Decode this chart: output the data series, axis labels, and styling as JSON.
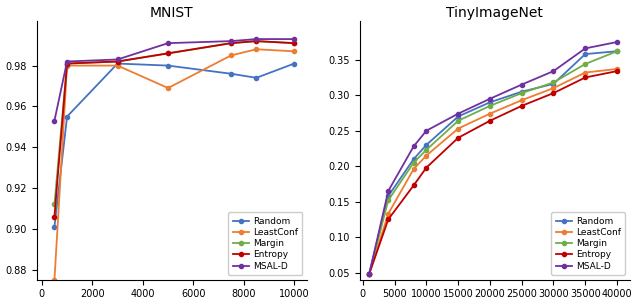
{
  "mnist": {
    "title": "MNIST",
    "x": [
      500,
      1000,
      3000,
      5000,
      7500,
      8500,
      10000
    ],
    "Random": [
      0.901,
      0.955,
      0.981,
      0.98,
      0.976,
      0.974,
      0.981
    ],
    "LeastConf": [
      0.875,
      0.98,
      0.98,
      0.969,
      0.985,
      0.988,
      0.987
    ],
    "Margin": [
      0.912,
      0.981,
      0.982,
      0.986,
      0.991,
      0.992,
      0.991
    ],
    "Entropy": [
      0.906,
      0.981,
      0.982,
      0.986,
      0.991,
      0.992,
      0.991
    ],
    "MSAL-D": [
      0.953,
      0.982,
      0.983,
      0.991,
      0.992,
      0.993,
      0.993
    ],
    "xlim": [
      -200,
      10500
    ],
    "ylim": [
      0.875,
      1.002
    ],
    "xticks": [
      0,
      2000,
      4000,
      6000,
      8000,
      10000
    ],
    "yticks": [
      0.88,
      0.9,
      0.92,
      0.94,
      0.96,
      0.98
    ]
  },
  "tiny": {
    "title": "TinyImageNet",
    "x": [
      1000,
      4000,
      8000,
      10000,
      15000,
      20000,
      25000,
      30000,
      35000,
      40000
    ],
    "Random": [
      0.048,
      0.158,
      0.21,
      0.23,
      0.27,
      0.29,
      0.305,
      0.316,
      0.358,
      0.362
    ],
    "LeastConf": [
      0.048,
      0.133,
      0.196,
      0.215,
      0.253,
      0.274,
      0.293,
      0.31,
      0.332,
      0.337
    ],
    "Margin": [
      0.048,
      0.152,
      0.205,
      0.223,
      0.264,
      0.285,
      0.303,
      0.318,
      0.344,
      0.362
    ],
    "Entropy": [
      0.048,
      0.125,
      0.173,
      0.198,
      0.24,
      0.264,
      0.285,
      0.303,
      0.325,
      0.334
    ],
    "MSAL-D": [
      0.048,
      0.165,
      0.228,
      0.25,
      0.274,
      0.295,
      0.315,
      0.334,
      0.366,
      0.375
    ],
    "xlim": [
      -500,
      42000
    ],
    "ylim": [
      0.04,
      0.405
    ],
    "xticks": [
      0,
      5000,
      10000,
      15000,
      20000,
      25000,
      30000,
      35000,
      40000
    ],
    "yticks": [
      0.05,
      0.1,
      0.15,
      0.2,
      0.25,
      0.3,
      0.35
    ]
  },
  "colors": {
    "Random": "#4472C4",
    "LeastConf": "#ED7D31",
    "Margin": "#70AD47",
    "Entropy": "#C00000",
    "MSAL-D": "#7030A0"
  },
  "legend_order": [
    "Random",
    "LeastConf",
    "Margin",
    "Entropy",
    "MSAL-D"
  ],
  "marker": "o",
  "markersize": 3.0,
  "linewidth": 1.3
}
